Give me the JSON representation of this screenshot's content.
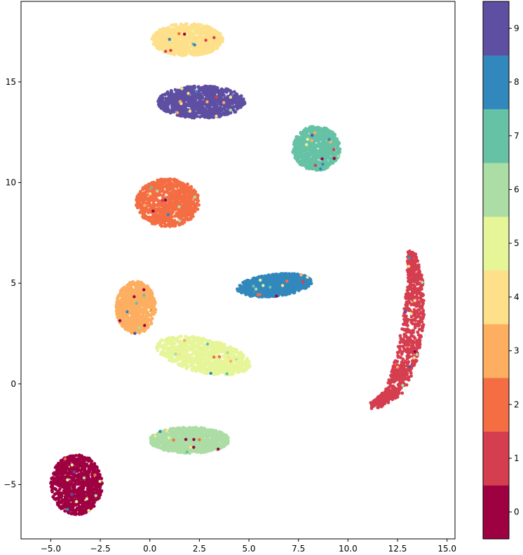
{
  "chart_data": {
    "type": "scatter",
    "title": "",
    "xlabel": "",
    "ylabel": "",
    "xlim": [
      -6.5,
      15.4
    ],
    "ylim": [
      -7.7,
      19.0
    ],
    "xticks": [
      -5.0,
      -2.5,
      0.0,
      2.5,
      5.0,
      7.5,
      10.0,
      12.5,
      15.0
    ],
    "xtick_labels": [
      "−5.0",
      "−2.5",
      "0.0",
      "2.5",
      "5.0",
      "7.5",
      "10.0",
      "12.5",
      "15.0"
    ],
    "yticks": [
      -5,
      0,
      5,
      10,
      15
    ],
    "ytick_labels": [
      "−5",
      "0",
      "5",
      "10",
      "15"
    ],
    "colormap": "Spectral",
    "colorbar": {
      "labels": [
        "0",
        "1",
        "2",
        "3",
        "4",
        "5",
        "6",
        "7",
        "8",
        "9"
      ],
      "colors": [
        "#9e0142",
        "#d53e4f",
        "#f46d43",
        "#fdae61",
        "#fee08b",
        "#e6f598",
        "#abdda4",
        "#66c2a5",
        "#3288bd",
        "#5e4fa2"
      ]
    },
    "clusters": [
      {
        "label": "0",
        "center": [
          -3.7,
          -5.0
        ],
        "shape": "blob",
        "rx": 1.3,
        "ry": 1.5
      },
      {
        "label": "1",
        "center": [
          12.0,
          2.7
        ],
        "shape": "crescent",
        "path": [
          [
            13.2,
            6.5
          ],
          [
            13.4,
            5.0
          ],
          [
            13.3,
            3.0
          ],
          [
            12.9,
            1.0
          ],
          [
            12.3,
            -0.4
          ],
          [
            11.3,
            -1.1
          ]
        ],
        "width": 1.1
      },
      {
        "label": "2",
        "center": [
          0.9,
          9.0
        ],
        "shape": "blob",
        "rx": 1.6,
        "ry": 1.2
      },
      {
        "label": "3",
        "center": [
          -0.7,
          3.8
        ],
        "shape": "blob",
        "rx": 1.0,
        "ry": 1.3
      },
      {
        "label": "4",
        "center": [
          1.9,
          17.1
        ],
        "shape": "blob",
        "rx": 1.8,
        "ry": 0.8
      },
      {
        "label": "5",
        "center": [
          2.7,
          1.4
        ],
        "shape": "elongated",
        "rx": 2.4,
        "ry": 0.85,
        "angle": -12
      },
      {
        "label": "6",
        "center": [
          2.0,
          -2.8
        ],
        "shape": "blob",
        "rx": 2.0,
        "ry": 0.65
      },
      {
        "label": "7",
        "center": [
          8.4,
          11.7
        ],
        "shape": "blob",
        "rx": 1.2,
        "ry": 1.1
      },
      {
        "label": "8",
        "center": [
          6.3,
          4.9
        ],
        "shape": "elongated",
        "rx": 1.9,
        "ry": 0.55,
        "angle": 6
      },
      {
        "label": "9",
        "center": [
          2.6,
          14.0
        ],
        "shape": "blob",
        "rx": 2.2,
        "ry": 0.8
      }
    ]
  }
}
